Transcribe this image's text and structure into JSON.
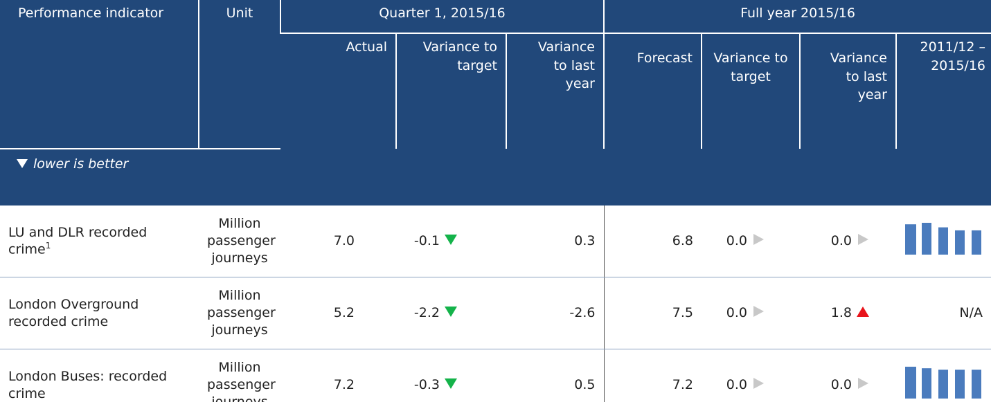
{
  "header": {
    "indicator": "Performance indicator",
    "unit": "Unit",
    "quarter": "Quarter 1, 2015/16",
    "full_year": "Full year 2015/16",
    "quarter_columns": [
      "Actual",
      "Variance to target",
      "Variance to last year"
    ],
    "full_year_columns": [
      "Forecast",
      "Variance to target",
      "Variance to last year",
      "2011/12 – 2015/16"
    ]
  },
  "note": "lower is better",
  "rows": [
    {
      "indicator": "LU and DLR recorded crime",
      "footnote": "1",
      "unit": "Million passenger journeys",
      "values": [
        "7.0",
        "-0.1",
        "0.3",
        "6.8",
        "0.0",
        "0.0"
      ],
      "history": [
        40,
        42,
        36,
        32,
        32
      ]
    },
    {
      "indicator": "London Overground recorded crime",
      "unit": "Million passenger journeys",
      "values": [
        "5.2",
        "-2.2",
        "-2.6",
        "7.5",
        "0.0",
        "1.8"
      ],
      "history_label": "N/A"
    },
    {
      "indicator": "London Buses: recorded crime",
      "unit": "Million passenger journeys",
      "values": [
        "7.2",
        "-0.3",
        "0.5",
        "7.2",
        "0.0",
        "0.0"
      ],
      "history": [
        42,
        40,
        38,
        38,
        38
      ]
    }
  ]
}
